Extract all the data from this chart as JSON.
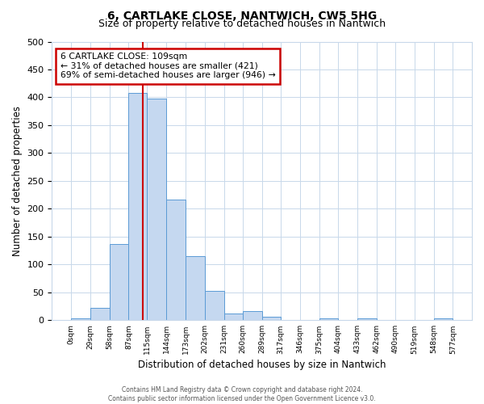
{
  "title": "6, CARTLAKE CLOSE, NANTWICH, CW5 5HG",
  "subtitle": "Size of property relative to detached houses in Nantwich",
  "xlabel": "Distribution of detached houses by size in Nantwich",
  "ylabel": "Number of detached properties",
  "bin_edges": [
    0,
    29,
    58,
    87,
    115,
    144,
    173,
    202,
    231,
    260,
    289,
    317,
    346,
    375,
    404,
    433,
    462,
    490,
    519,
    548,
    577
  ],
  "bar_heights": [
    3,
    22,
    137,
    408,
    398,
    217,
    115,
    52,
    12,
    16,
    6,
    0,
    0,
    3,
    0,
    3,
    0,
    0,
    0,
    3
  ],
  "bar_color": "#c5d8f0",
  "bar_edge_color": "#5b9bd5",
  "property_size": 109,
  "vline_color": "#cc0000",
  "annotation_line1": "6 CARTLAKE CLOSE: 109sqm",
  "annotation_line2": "← 31% of detached houses are smaller (421)",
  "annotation_line3": "69% of semi-detached houses are larger (946) →",
  "annotation_box_color": "#ffffff",
  "annotation_box_edge_color": "#cc0000",
  "ylim": [
    0,
    500
  ],
  "yticks": [
    0,
    50,
    100,
    150,
    200,
    250,
    300,
    350,
    400,
    450,
    500
  ],
  "grid_color": "#c8d8ea",
  "footer_line1": "Contains HM Land Registry data © Crown copyright and database right 2024.",
  "footer_line2": "Contains public sector information licensed under the Open Government Licence v3.0.",
  "bg_color": "#ffffff",
  "title_fontsize": 10,
  "subtitle_fontsize": 9
}
